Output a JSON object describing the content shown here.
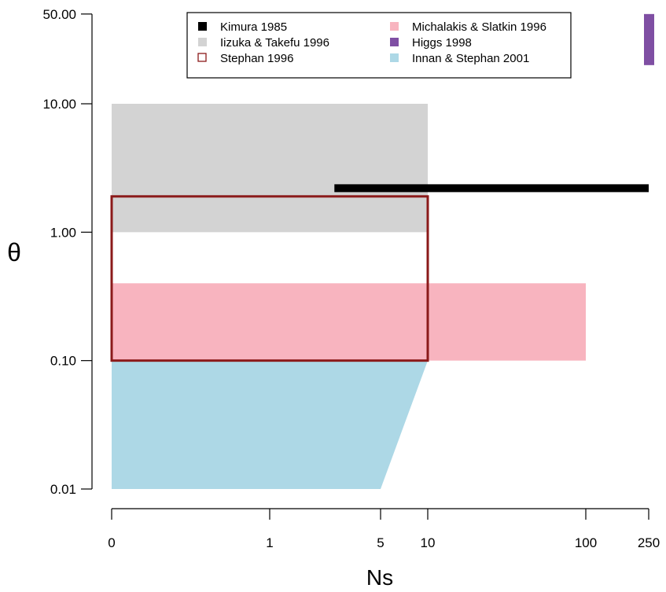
{
  "chart_data": {
    "type": "area",
    "title": "",
    "xlabel": "Ns",
    "ylabel": "θ",
    "x_scale": "custom-log",
    "y_scale": "log",
    "x_ticks": [
      {
        "value": 0,
        "label": "0"
      },
      {
        "value": 1,
        "label": "1"
      },
      {
        "value": 5,
        "label": "5"
      },
      {
        "value": 10,
        "label": "10"
      },
      {
        "value": 100,
        "label": "100"
      },
      {
        "value": 250,
        "label": "250"
      }
    ],
    "y_ticks": [
      {
        "value": 0.01,
        "label": "0.01"
      },
      {
        "value": 0.1,
        "label": "0.10"
      },
      {
        "value": 1,
        "label": "1.00"
      },
      {
        "value": 10,
        "label": "10.00"
      },
      {
        "value": 50,
        "label": "50.00"
      }
    ],
    "ylim": [
      0.01,
      50
    ],
    "xlim": [
      0,
      250
    ],
    "grid": false,
    "legend_position": "top",
    "series": [
      {
        "name": "Kimura 1985",
        "kind": "segment",
        "color": "#000000",
        "ns_range": [
          2.5,
          250
        ],
        "theta": 2.2
      },
      {
        "name": "Iizuka & Takefu 1996",
        "kind": "rect",
        "color": "#d3d3d3",
        "ns_range": [
          0,
          10
        ],
        "theta_range": [
          1,
          10
        ]
      },
      {
        "name": "Stephan 1996",
        "kind": "outline",
        "color": "#8b1a1a",
        "ns_range": [
          0,
          10
        ],
        "theta_range": [
          0.1,
          1.9
        ]
      },
      {
        "name": "Michalakis & Slatkin 1996",
        "kind": "rect",
        "color": "#f8b4bf",
        "ns_range": [
          0,
          100
        ],
        "theta_range": [
          0.1,
          0.4
        ]
      },
      {
        "name": "Higgs 1998",
        "kind": "rect",
        "color": "#7f4fa3",
        "ns_range": [
          250,
          250
        ],
        "theta_range": [
          20,
          50
        ]
      },
      {
        "name": "Innan & Stephan 2001",
        "kind": "polygon",
        "color": "#add8e6",
        "points": [
          [
            0,
            0.1
          ],
          [
            10,
            0.1
          ],
          [
            5,
            0.01
          ],
          [
            0,
            0.01
          ]
        ]
      }
    ]
  }
}
